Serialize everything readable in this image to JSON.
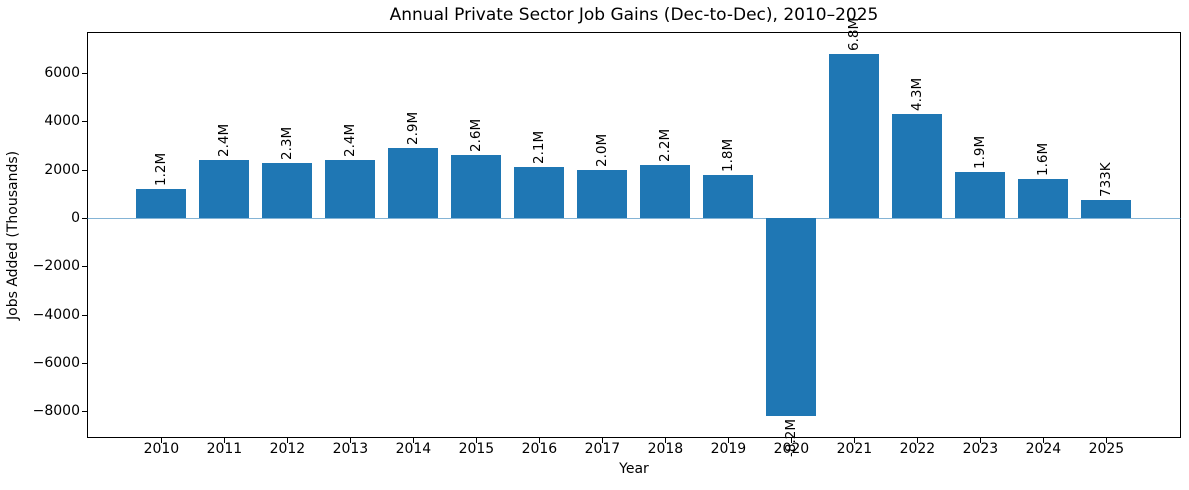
{
  "chart_data": {
    "type": "bar",
    "title": "Annual Private Sector Job Gains (Dec-to-Dec), 2010–2025",
    "xlabel": "Year",
    "ylabel": "Jobs Added (Thousands)",
    "categories": [
      "2010",
      "2011",
      "2012",
      "2013",
      "2014",
      "2015",
      "2016",
      "2017",
      "2018",
      "2019",
      "2020",
      "2021",
      "2022",
      "2023",
      "2024",
      "2025"
    ],
    "values": [
      1200,
      2400,
      2300,
      2400,
      2900,
      2600,
      2100,
      2000,
      2200,
      1800,
      -8200,
      6800,
      4300,
      1900,
      1600,
      733
    ],
    "bar_labels": [
      "1.2M",
      "2.4M",
      "2.3M",
      "2.4M",
      "2.9M",
      "2.6M",
      "2.1M",
      "2.0M",
      "2.2M",
      "1.8M",
      "-8.2M",
      "6.8M",
      "4.3M",
      "1.9M",
      "1.6M",
      "733K"
    ],
    "units": "thousands",
    "yticks": [
      -8000,
      -6000,
      -4000,
      -2000,
      0,
      2000,
      4000,
      6000
    ],
    "ylim": [
      -9100,
      7700
    ],
    "grid": false,
    "legend": null,
    "zero_line": true,
    "bar_label_rotation": 90,
    "colors": {
      "bar": "#1f77b4",
      "zero_line": "rgba(31,119,180,0.55)",
      "text": "#000000",
      "spine": "#000000"
    }
  }
}
